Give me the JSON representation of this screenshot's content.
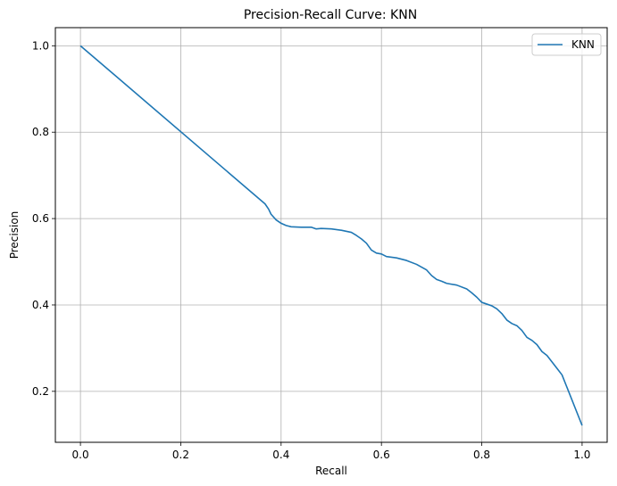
{
  "chart_data": {
    "type": "line",
    "title": "Precision-Recall Curve: KNN",
    "xlabel": "Recall",
    "ylabel": "Precision",
    "xlim": [
      -0.05,
      1.05
    ],
    "ylim": [
      0.082,
      1.042
    ],
    "x_ticks": [
      0.0,
      0.2,
      0.4,
      0.6,
      0.8,
      1.0
    ],
    "x_tick_labels": [
      "0.0",
      "0.2",
      "0.4",
      "0.6",
      "0.8",
      "1.0"
    ],
    "y_ticks": [
      0.2,
      0.4,
      0.6,
      0.8,
      1.0
    ],
    "y_tick_labels": [
      "0.2",
      "0.4",
      "0.6",
      "0.8",
      "1.0"
    ],
    "grid": true,
    "legend_position": "top-right",
    "series": [
      {
        "name": "KNN",
        "color": "#1f77b4",
        "x": [
          0.0,
          0.368,
          0.375,
          0.38,
          0.39,
          0.4,
          0.41,
          0.42,
          0.44,
          0.46,
          0.47,
          0.48,
          0.5,
          0.52,
          0.54,
          0.55,
          0.56,
          0.57,
          0.58,
          0.59,
          0.6,
          0.61,
          0.63,
          0.65,
          0.67,
          0.69,
          0.7,
          0.71,
          0.72,
          0.73,
          0.75,
          0.77,
          0.78,
          0.79,
          0.8,
          0.82,
          0.83,
          0.84,
          0.85,
          0.86,
          0.87,
          0.88,
          0.89,
          0.9,
          0.91,
          0.92,
          0.93,
          0.94,
          0.95,
          0.96,
          1.0
        ],
        "y": [
          1.0,
          0.634,
          0.622,
          0.61,
          0.597,
          0.589,
          0.584,
          0.581,
          0.58,
          0.58,
          0.576,
          0.577,
          0.576,
          0.573,
          0.568,
          0.561,
          0.553,
          0.543,
          0.527,
          0.52,
          0.518,
          0.512,
          0.509,
          0.503,
          0.494,
          0.481,
          0.468,
          0.459,
          0.455,
          0.45,
          0.446,
          0.437,
          0.428,
          0.418,
          0.406,
          0.398,
          0.391,
          0.38,
          0.365,
          0.357,
          0.352,
          0.341,
          0.325,
          0.318,
          0.308,
          0.292,
          0.283,
          0.268,
          0.253,
          0.238,
          0.121
        ]
      }
    ]
  }
}
